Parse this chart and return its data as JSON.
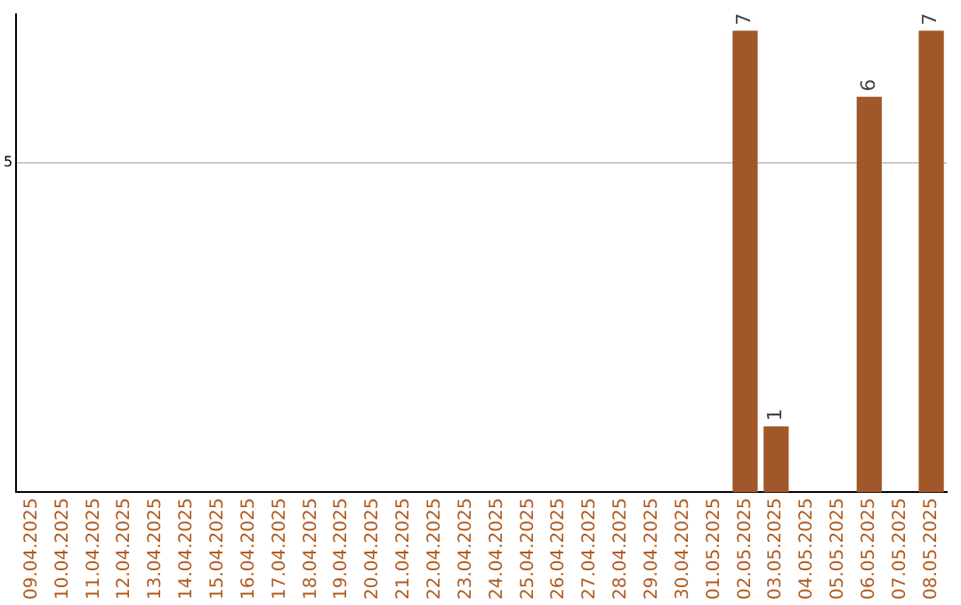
{
  "chart_data": {
    "type": "bar",
    "categories": [
      "09.04.2025",
      "10.04.2025",
      "11.04.2025",
      "12.04.2025",
      "13.04.2025",
      "14.04.2025",
      "15.04.2025",
      "16.04.2025",
      "17.04.2025",
      "18.04.2025",
      "19.04.2025",
      "20.04.2025",
      "21.04.2025",
      "22.04.2025",
      "23.04.2025",
      "24.04.2025",
      "25.04.2025",
      "26.04.2025",
      "27.04.2025",
      "28.04.2025",
      "29.04.2025",
      "30.04.2025",
      "01.05.2025",
      "02.05.2025",
      "03.05.2025",
      "04.05.2025",
      "05.05.2025",
      "06.05.2025",
      "07.05.2025",
      "08.05.2025"
    ],
    "values": [
      null,
      null,
      null,
      null,
      null,
      null,
      null,
      null,
      null,
      null,
      null,
      null,
      null,
      null,
      null,
      null,
      null,
      null,
      null,
      null,
      null,
      null,
      null,
      7,
      1,
      null,
      null,
      6,
      null,
      7
    ],
    "color": "#a0582a",
    "ylim": [
      0,
      7.25
    ],
    "yticks": [
      5
    ],
    "grid": "y",
    "data_labels": true
  }
}
